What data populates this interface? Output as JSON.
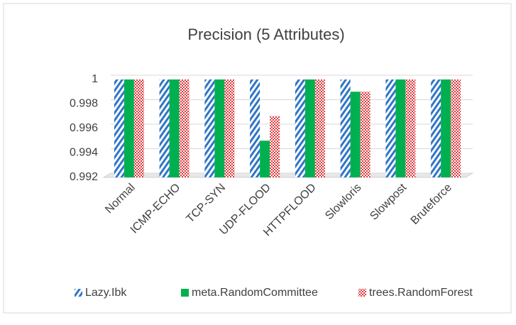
{
  "chart_data": {
    "type": "bar",
    "title": "Precision (5 Attributes)",
    "categories": [
      "Normal",
      "ICMP-ECHO",
      "TCP-SYN",
      "UDP-FLOOD",
      "HTTPFLOOD",
      "Slowloris",
      "Slowpost",
      "Bruteforce"
    ],
    "series": [
      {
        "name": "Lazy.Ibk",
        "color": "#2e75c6",
        "values": [
          1,
          1,
          1,
          1,
          1,
          1,
          1,
          1
        ]
      },
      {
        "name": "meta.RandomCommittee",
        "color": "#00b050",
        "values": [
          1,
          1,
          1,
          0.995,
          1,
          0.999,
          1,
          1
        ]
      },
      {
        "name": "trees.RandomForest",
        "color": "#e0393e",
        "values": [
          1,
          1,
          1,
          0.997,
          1,
          0.999,
          1,
          1
        ]
      }
    ],
    "ylim": [
      0.992,
      1
    ],
    "yticks": [
      0.992,
      0.994,
      0.996,
      0.998,
      1
    ],
    "grid": true,
    "legend": "bottom"
  }
}
